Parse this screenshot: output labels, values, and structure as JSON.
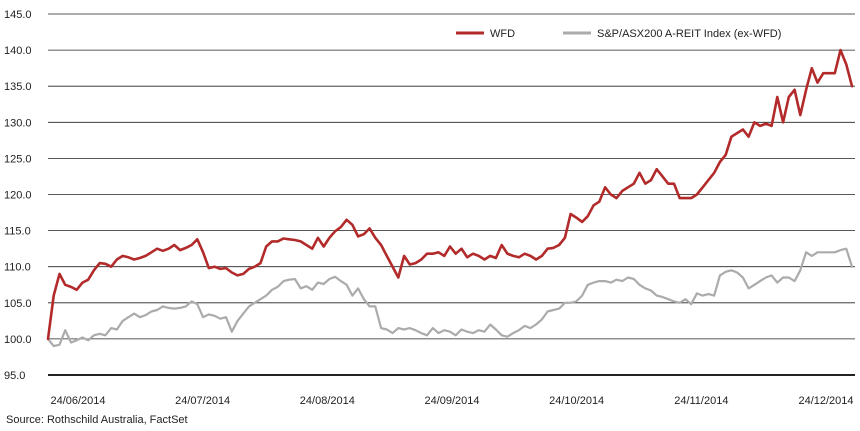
{
  "chart_data": {
    "type": "line",
    "ylim": [
      95,
      145
    ],
    "yticks": [
      "145.0",
      "140.0",
      "135.0",
      "130.0",
      "125.0",
      "120.0",
      "115.0",
      "110.0",
      "105.0",
      "100.0",
      "95.0"
    ],
    "xticks": [
      "24/06/2014",
      "24/07/2014",
      "24/08/2014",
      "24/09/2014",
      "24/10/2014",
      "24/11/2014",
      "24/12/2014"
    ],
    "grid": "horizontal",
    "legend_position": "top-right",
    "colors": {
      "wfd": "#b32a2a",
      "index": "#ababab",
      "grid": "#222222"
    },
    "series": [
      {
        "name": "WFD",
        "color": "#b32a2a",
        "values": [
          100.0,
          106.0,
          109.0,
          107.5,
          107.2,
          106.8,
          107.8,
          108.2,
          109.5,
          110.5,
          110.4,
          110.0,
          111.0,
          111.5,
          111.3,
          111.0,
          111.2,
          111.5,
          112.0,
          112.5,
          112.2,
          112.5,
          113.0,
          112.3,
          112.6,
          113.0,
          113.8,
          112.0,
          109.8,
          110.0,
          109.7,
          109.8,
          109.2,
          108.8,
          109.0,
          109.7,
          110.0,
          110.5,
          112.8,
          113.5,
          113.5,
          113.9,
          113.8,
          113.7,
          113.5,
          113.0,
          112.5,
          114.0,
          112.8,
          114.0,
          114.9,
          115.5,
          116.5,
          115.8,
          114.2,
          114.5,
          115.3,
          114.0,
          113.0,
          111.5,
          110.0,
          108.5,
          111.5,
          110.3,
          110.5,
          111.0,
          111.8,
          111.8,
          112.0,
          111.5,
          112.8,
          111.8,
          112.5,
          111.3,
          111.8,
          111.5,
          111.0,
          111.5,
          111.2,
          113.0,
          111.8,
          111.5,
          111.3,
          111.8,
          111.5,
          111.0,
          111.5,
          112.5,
          112.6,
          113.0,
          114.0,
          117.3,
          116.8,
          116.2,
          117.0,
          118.5,
          119.0,
          121.0,
          120.0,
          119.5,
          120.5,
          121.0,
          121.5,
          123.0,
          121.5,
          122.0,
          123.5,
          122.5,
          121.5,
          121.5,
          119.5,
          119.5,
          119.5,
          120.0,
          121.0,
          122.0,
          123.0,
          124.5,
          125.5,
          128.0,
          128.5,
          129.0,
          128.0,
          130.0,
          129.5,
          129.8,
          129.5,
          133.5,
          130.0,
          133.5,
          134.5,
          131.0,
          134.5,
          137.5,
          135.5,
          136.8,
          136.8,
          136.8,
          140.0,
          138.0,
          135.0
        ]
      },
      {
        "name": "S&P/ASX200 A-REIT Index (ex-WFD)",
        "color": "#ababab",
        "values": [
          100.0,
          99.0,
          99.2,
          101.2,
          99.5,
          99.8,
          100.2,
          99.8,
          100.5,
          100.7,
          100.5,
          101.5,
          101.3,
          102.5,
          103.0,
          103.5,
          103.0,
          103.3,
          103.8,
          104.0,
          104.5,
          104.3,
          104.2,
          104.3,
          104.5,
          105.2,
          104.8,
          103.0,
          103.4,
          103.2,
          102.8,
          103.0,
          101.0,
          102.5,
          103.5,
          104.5,
          105.0,
          105.5,
          106.0,
          106.8,
          107.2,
          108.0,
          108.2,
          108.3,
          107.0,
          107.3,
          106.8,
          107.8,
          107.6,
          108.3,
          108.6,
          108.0,
          107.5,
          106.0,
          107.0,
          105.5,
          104.5,
          104.5,
          101.5,
          101.3,
          100.8,
          101.5,
          101.3,
          101.5,
          101.2,
          100.8,
          100.5,
          101.5,
          100.8,
          101.2,
          101.0,
          100.5,
          101.3,
          101.0,
          100.8,
          101.2,
          101.0,
          102.0,
          101.3,
          100.5,
          100.3,
          100.8,
          101.2,
          101.8,
          101.5,
          102.0,
          102.7,
          103.8,
          104.0,
          104.2,
          105.0,
          105.0,
          105.2,
          106.0,
          107.5,
          107.8,
          108.0,
          108.0,
          107.8,
          108.2,
          108.0,
          108.5,
          108.3,
          107.5,
          107.0,
          106.7,
          106.0,
          105.8,
          105.5,
          105.2,
          105.0,
          105.5,
          104.8,
          106.3,
          106.0,
          106.2,
          106.0,
          108.8,
          109.3,
          109.5,
          109.2,
          108.5,
          107.0,
          107.5,
          108.0,
          108.5,
          108.8,
          107.8,
          108.5,
          108.5,
          108.0,
          109.5,
          112.0,
          111.5,
          112.0,
          112.0,
          112.0,
          112.0,
          112.3,
          112.5,
          110.0
        ]
      }
    ]
  },
  "source": "Source: Rothschild Australia, FactSet"
}
